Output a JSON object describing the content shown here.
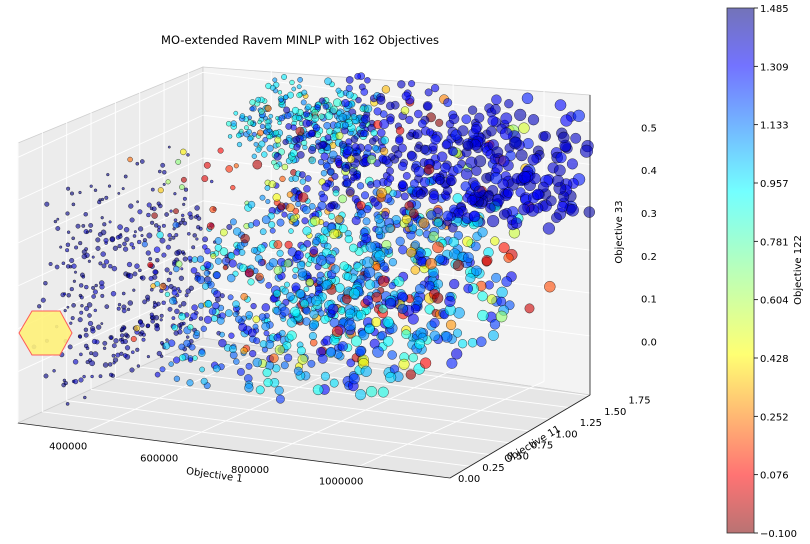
{
  "chart_data": {
    "type": "scatter",
    "title": "MO-extended Ravem MINLP with 162 Objectives",
    "xlabel": "Objective 1",
    "ylabel": "Objective 11",
    "zlabel": "Objective 33",
    "colorbar_label": "Objective 122",
    "x_ticks": [
      "400000",
      "600000",
      "800000",
      "1000000"
    ],
    "y_ticks": [
      "0.00",
      "0.25",
      "0.50",
      "0.75",
      "1.00",
      "1.25",
      "1.50",
      "1.75"
    ],
    "z_ticks": [
      "0.0",
      "0.1",
      "0.2",
      "0.3",
      "0.4",
      "0.5"
    ],
    "colorbar_ticks": [
      "1.485",
      "1.309",
      "1.133",
      "0.957",
      "0.781",
      "0.604",
      "0.428",
      "0.252",
      "0.076",
      "−0.100"
    ],
    "xlim": [
      250000,
      1200000
    ],
    "ylim": [
      0,
      1.9
    ],
    "zlim": [
      -0.12,
      0.58
    ],
    "color_range": [
      -0.1,
      1.485
    ],
    "colormap": "jet",
    "grid": true,
    "point_count": 2000,
    "highlight_marker": {
      "shape": "hexagon",
      "color": "#fff27a",
      "edge_color": "#ff5555"
    }
  }
}
